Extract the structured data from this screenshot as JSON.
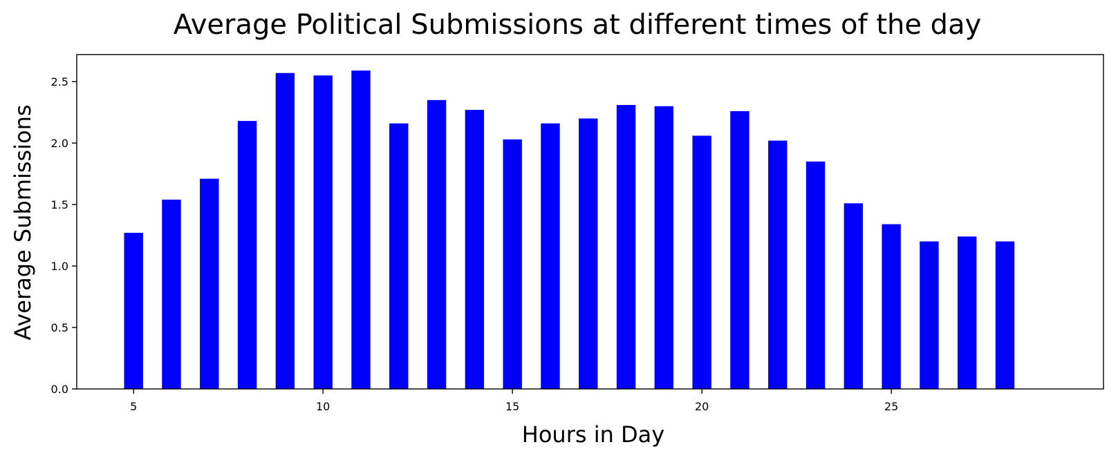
{
  "chart_data": {
    "type": "bar",
    "title": "Average Political Submissions at different times of the day",
    "xlabel": "Hours in Day",
    "ylabel": "Average Submissions",
    "x": [
      5,
      6,
      7,
      8,
      9,
      10,
      11,
      12,
      13,
      14,
      15,
      16,
      17,
      18,
      19,
      20,
      21,
      22,
      23,
      24,
      25,
      26,
      27,
      28
    ],
    "values": [
      1.27,
      1.54,
      1.71,
      2.18,
      2.57,
      2.55,
      2.59,
      2.16,
      2.35,
      2.27,
      2.03,
      2.16,
      2.2,
      2.31,
      2.3,
      2.06,
      2.26,
      2.02,
      1.85,
      1.51,
      1.34,
      1.2,
      1.24,
      1.2
    ],
    "xlim": [
      3.5,
      30.6
    ],
    "ylim": [
      0,
      2.72
    ],
    "xticks": [
      5,
      10,
      15,
      20,
      25
    ],
    "xtick_labels": [
      "5",
      "10",
      "15",
      "20",
      "25"
    ],
    "yticks": [
      0.0,
      0.5,
      1.0,
      1.5,
      2.0,
      2.5
    ],
    "ytick_labels": [
      "0.0",
      "0.5",
      "1.0",
      "1.5",
      "2.0",
      "2.5"
    ],
    "bar_color": "#0000ff",
    "grid": false,
    "legend": "none"
  }
}
